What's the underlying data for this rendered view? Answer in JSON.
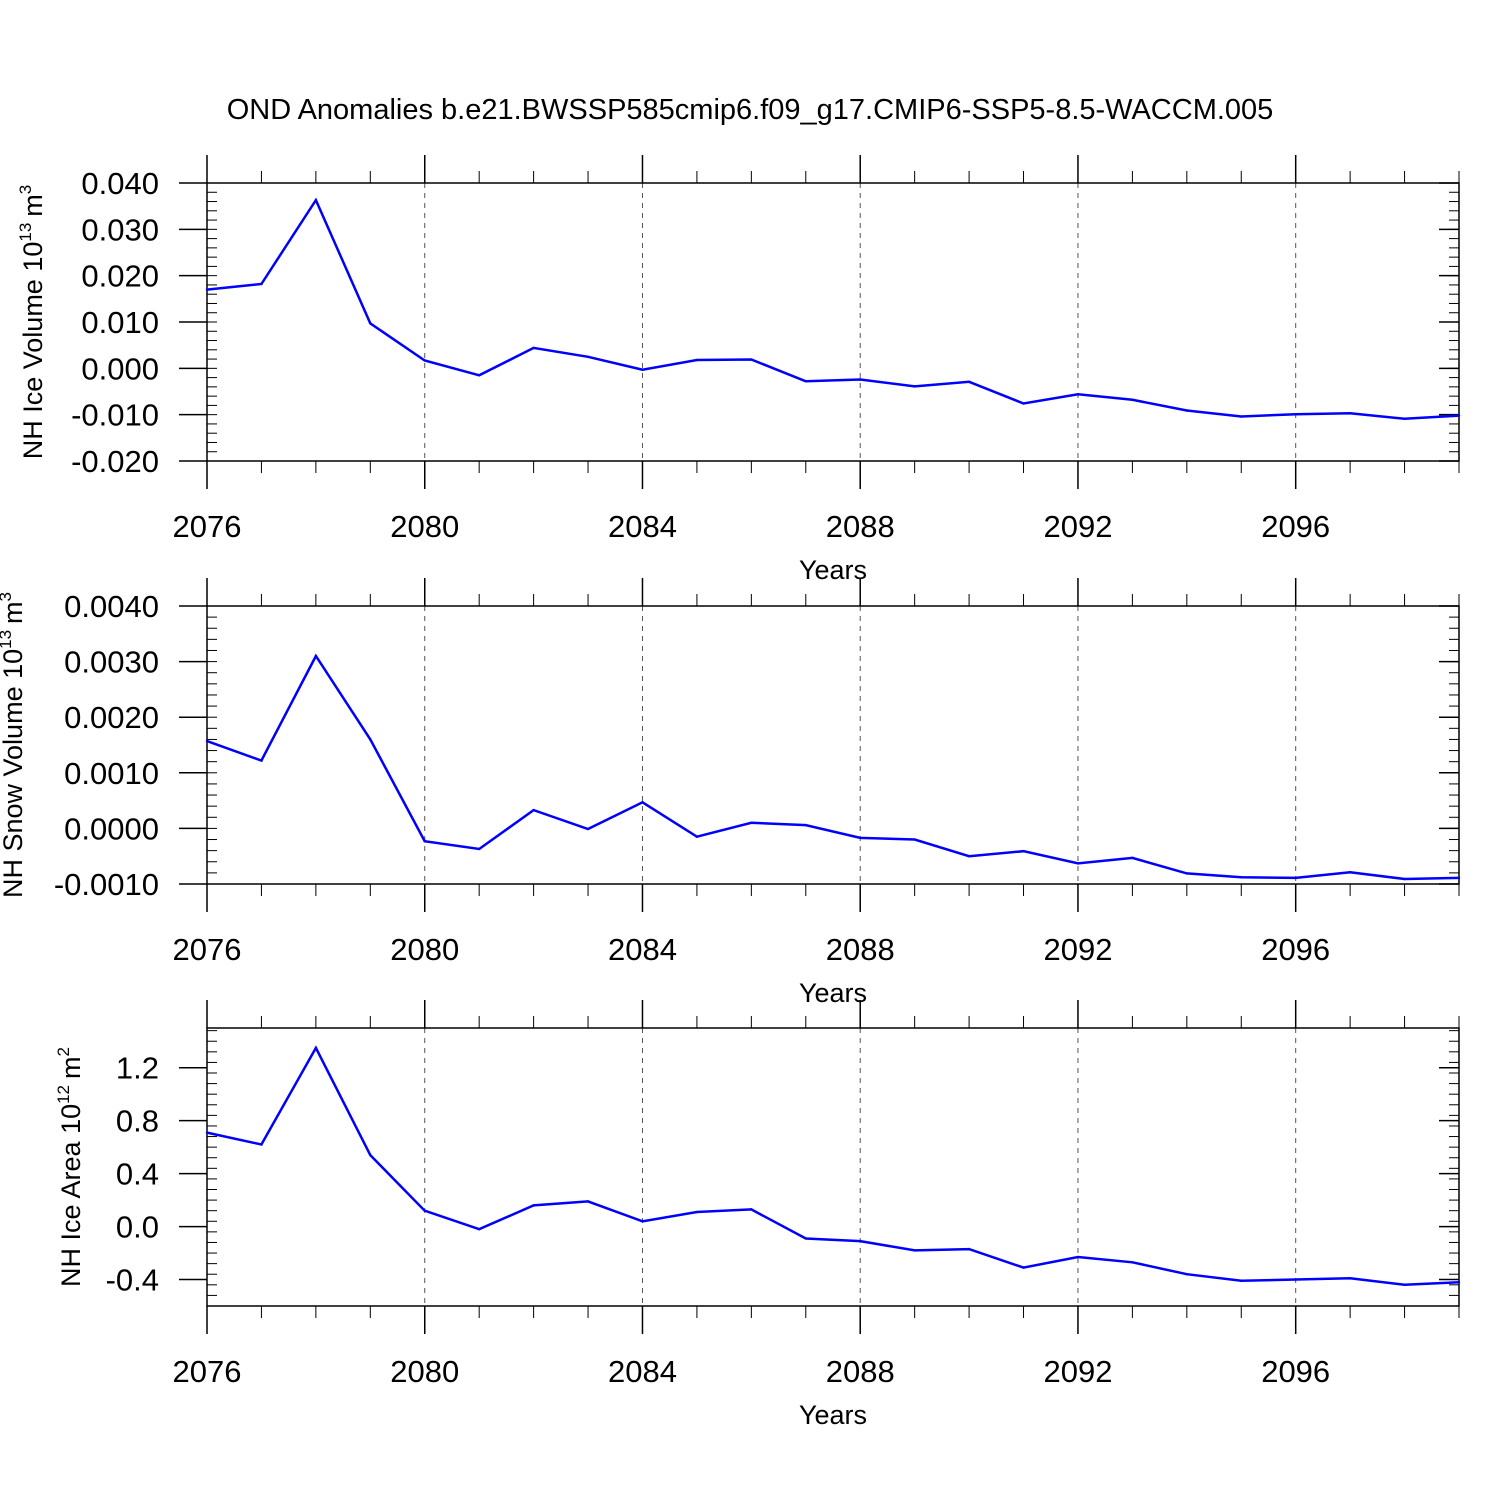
{
  "figure": {
    "title": "OND Anomalies b.e21.BWSSP585cmip6.f09_g17.CMIP6-SSP5-8.5-WACCM.005",
    "line_color": "#0000ff",
    "grid_color": "#555555"
  },
  "chart_data": [
    {
      "type": "line",
      "name": "ice-volume",
      "xlabel": "Years",
      "ylabel": "NH Ice Volume 10",
      "ylabel_exp": "13",
      "ylabel_unit": "m",
      "ylabel_unit_exp": "3",
      "xlim": [
        2076,
        2099
      ],
      "ylim": [
        -0.02,
        0.04
      ],
      "yticks": [
        -0.02,
        -0.01,
        0.0,
        0.01,
        0.02,
        0.03,
        0.04
      ],
      "yticklabels": [
        "-0.020",
        "-0.010",
        "0.000",
        "0.010",
        "0.020",
        "0.030",
        "0.040"
      ],
      "yminor_step": 0.002,
      "xticks": [
        2076,
        2080,
        2084,
        2088,
        2092,
        2096
      ],
      "xticklabels": [
        "2076",
        "2080",
        "2084",
        "2088",
        "2092",
        "2096"
      ],
      "grid_x": true,
      "x": [
        2076,
        2077,
        2078,
        2079,
        2080,
        2081,
        2082,
        2083,
        2084,
        2085,
        2086,
        2087,
        2088,
        2089,
        2090,
        2091,
        2092,
        2093,
        2094,
        2095,
        2096,
        2097,
        2098,
        2099
      ],
      "y": [
        0.017,
        0.0182,
        0.0363,
        0.0097,
        0.0017,
        -0.0015,
        0.0044,
        0.0025,
        -0.0003,
        0.0018,
        0.0019,
        -0.0028,
        -0.0024,
        -0.0039,
        -0.0029,
        -0.0076,
        -0.0056,
        -0.0068,
        -0.0091,
        -0.0104,
        -0.0099,
        -0.0097,
        -0.0109,
        -0.0102
      ]
    },
    {
      "type": "line",
      "name": "snow-volume",
      "xlabel": "Years",
      "ylabel": "NH Snow Volume 10",
      "ylabel_exp": "13",
      "ylabel_unit": "m",
      "ylabel_unit_exp": "3",
      "xlim": [
        2076,
        2099
      ],
      "ylim": [
        -0.001,
        0.004
      ],
      "yticks": [
        -0.001,
        0.0,
        0.001,
        0.002,
        0.003,
        0.004
      ],
      "yticklabels": [
        "-0.0010",
        "0.0000",
        "0.0010",
        "0.0020",
        "0.0030",
        "0.0040"
      ],
      "yminor_step": 0.0002,
      "xticks": [
        2076,
        2080,
        2084,
        2088,
        2092,
        2096
      ],
      "xticklabels": [
        "2076",
        "2080",
        "2084",
        "2088",
        "2092",
        "2096"
      ],
      "grid_x": true,
      "x": [
        2076,
        2077,
        2078,
        2079,
        2080,
        2081,
        2082,
        2083,
        2084,
        2085,
        2086,
        2087,
        2088,
        2089,
        2090,
        2091,
        2092,
        2093,
        2094,
        2095,
        2096,
        2097,
        2098,
        2099
      ],
      "y": [
        0.00157,
        0.00122,
        0.0031,
        0.0016,
        -0.00023,
        -0.00037,
        0.00033,
        -1e-05,
        0.00047,
        -0.00015,
        0.0001,
        6e-05,
        -0.00017,
        -0.0002,
        -0.0005,
        -0.00041,
        -0.00063,
        -0.00053,
        -0.00081,
        -0.00088,
        -0.00089,
        -0.00079,
        -0.00091,
        -0.00089
      ]
    },
    {
      "type": "line",
      "name": "ice-area",
      "xlabel": "Years",
      "ylabel": "NH Ice Area 10",
      "ylabel_exp": "12",
      "ylabel_unit": "m",
      "ylabel_unit_exp": "2",
      "xlim": [
        2076,
        2099
      ],
      "ylim": [
        -0.6,
        1.5
      ],
      "yticks": [
        -0.4,
        0.0,
        0.4,
        0.8,
        1.2
      ],
      "yticklabels": [
        "-0.4",
        "0.0",
        "0.4",
        "0.8",
        "1.2"
      ],
      "yminor_step": 0.08,
      "xticks": [
        2076,
        2080,
        2084,
        2088,
        2092,
        2096
      ],
      "xticklabels": [
        "2076",
        "2080",
        "2084",
        "2088",
        "2092",
        "2096"
      ],
      "grid_x": true,
      "x": [
        2076,
        2077,
        2078,
        2079,
        2080,
        2081,
        2082,
        2083,
        2084,
        2085,
        2086,
        2087,
        2088,
        2089,
        2090,
        2091,
        2092,
        2093,
        2094,
        2095,
        2096,
        2097,
        2098,
        2099
      ],
      "y": [
        0.71,
        0.62,
        1.35,
        0.54,
        0.12,
        -0.02,
        0.16,
        0.19,
        0.04,
        0.11,
        0.13,
        -0.09,
        -0.11,
        -0.18,
        -0.17,
        -0.31,
        -0.23,
        -0.27,
        -0.36,
        -0.41,
        -0.4,
        -0.39,
        -0.44,
        -0.42
      ]
    }
  ]
}
